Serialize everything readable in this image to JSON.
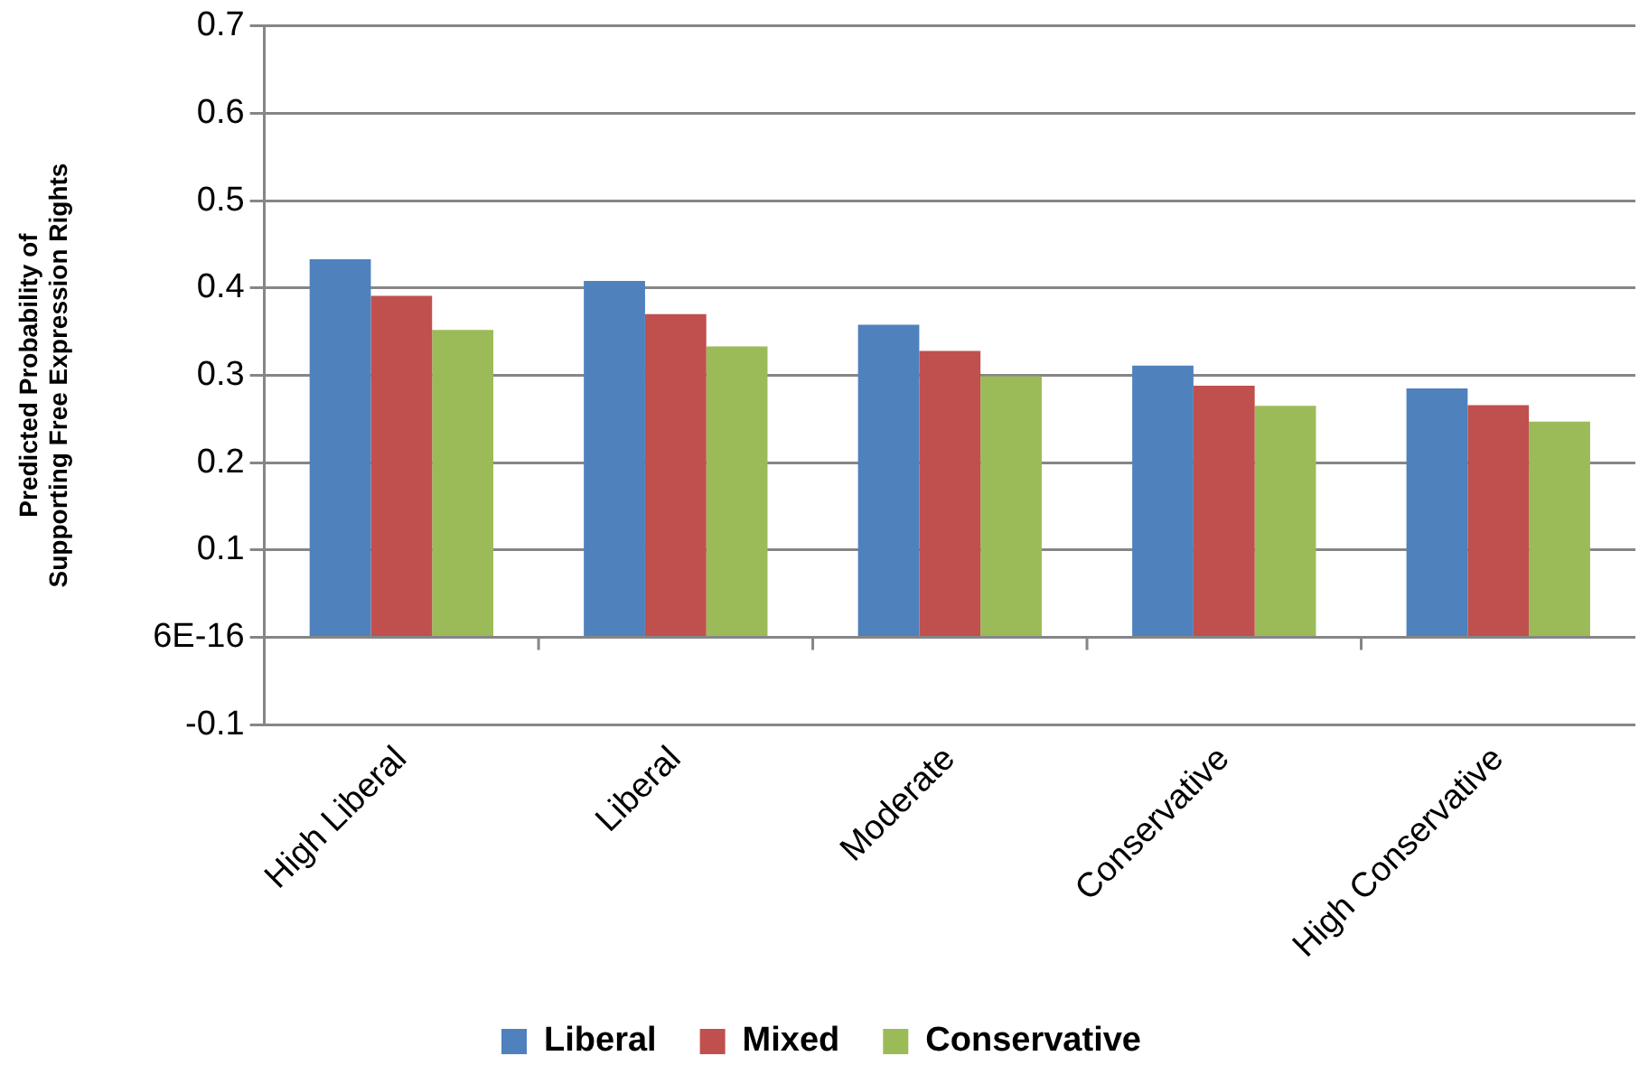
{
  "chart_data": {
    "type": "bar",
    "ylabel": "Predicted Probability of Supporting Free Expression Rights",
    "categories": [
      "High Liberal",
      "Liberal",
      "Moderate",
      "Conservative",
      "High Conservative"
    ],
    "series": [
      {
        "name": "Liberal",
        "color": "#4f81bd",
        "values": [
          0.433,
          0.408,
          0.358,
          0.311,
          0.285
        ]
      },
      {
        "name": "Mixed",
        "color": "#c0504d",
        "values": [
          0.391,
          0.37,
          0.328,
          0.288,
          0.266
        ]
      },
      {
        "name": "Conservative",
        "color": "#9bbb59",
        "values": [
          0.352,
          0.333,
          0.299,
          0.265,
          0.247
        ]
      }
    ],
    "ylim": [
      -0.1,
      0.7
    ],
    "yticks": [
      -0.1,
      {
        "value": 0,
        "label": "6E-16"
      },
      0.1,
      0.2,
      0.3,
      0.4,
      0.5,
      0.6,
      0.7
    ],
    "grid": "y",
    "legend": "bottom"
  }
}
